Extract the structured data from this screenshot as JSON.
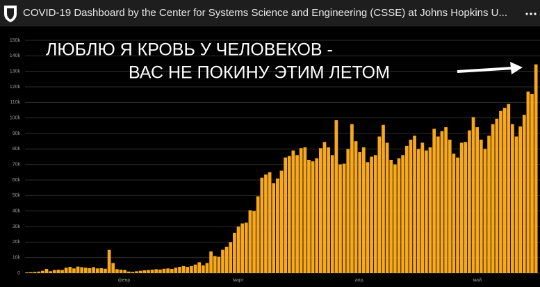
{
  "header": {
    "title": "COVID-19 Dashboard by the Center for Systems Science and Engineering (CSSE) at Johns Hopkins U..."
  },
  "chart_data": {
    "type": "bar",
    "annotations": [
      "ЛЮБЛЮ Я КРОВЬ У ЧЕЛОВЕКОВ  -",
      "ВАС НЕ ПОКИНУ ЭТИМ ЛЕТОМ"
    ],
    "color": "#f7a81b",
    "grid": true,
    "ylim": [
      0,
      150000
    ],
    "yticks": [
      {
        "value": 0,
        "label": "0"
      },
      {
        "value": 10000,
        "label": "10k"
      },
      {
        "value": 20000,
        "label": "20k"
      },
      {
        "value": 30000,
        "label": "30k"
      },
      {
        "value": 40000,
        "label": "40k"
      },
      {
        "value": 50000,
        "label": "50k"
      },
      {
        "value": 60000,
        "label": "60k"
      },
      {
        "value": 70000,
        "label": "70k"
      },
      {
        "value": 80000,
        "label": "80k"
      },
      {
        "value": 90000,
        "label": "90k"
      },
      {
        "value": 100000,
        "label": "100k"
      },
      {
        "value": 110000,
        "label": "110k"
      },
      {
        "value": 120000,
        "label": "120k"
      },
      {
        "value": 130000,
        "label": "130k"
      },
      {
        "value": 140000,
        "label": "140k"
      },
      {
        "value": 150000,
        "label": "150k"
      }
    ],
    "categories": [
      null,
      null,
      null,
      null,
      null,
      null,
      null,
      null,
      null,
      null,
      null,
      null,
      null,
      null,
      null,
      null,
      null,
      null,
      null,
      null,
      null,
      null,
      null,
      null,
      null,
      "февр.",
      null,
      null,
      null,
      null,
      null,
      null,
      null,
      null,
      null,
      null,
      null,
      null,
      null,
      null,
      null,
      null,
      null,
      null,
      null,
      null,
      null,
      null,
      null,
      null,
      null,
      null,
      null,
      null,
      "март",
      null,
      null,
      null,
      null,
      null,
      null,
      null,
      null,
      null,
      null,
      null,
      null,
      null,
      null,
      null,
      null,
      null,
      null,
      null,
      null,
      null,
      null,
      null,
      null,
      null,
      null,
      null,
      null,
      null,
      null,
      "апр.",
      null,
      null,
      null,
      null,
      null,
      null,
      null,
      null,
      null,
      null,
      null,
      null,
      null,
      null,
      null,
      null,
      null,
      null,
      null,
      null,
      null,
      null,
      null,
      null,
      null,
      null,
      null,
      null,
      null,
      "май",
      null,
      null,
      null,
      null,
      null,
      null,
      null,
      null,
      null,
      null,
      null,
      null,
      null,
      null,
      null
    ],
    "values": [
      500,
      600,
      800,
      1000,
      1500,
      2700,
      1200,
      2000,
      2200,
      2000,
      3500,
      4000,
      3000,
      4200,
      3800,
      3500,
      3200,
      3800,
      3000,
      3200,
      2800,
      15000,
      6500,
      2500,
      2200,
      2000,
      1000,
      800,
      1200,
      1500,
      1800,
      2000,
      2200,
      2500,
      2300,
      2800,
      3000,
      2700,
      3500,
      4000,
      4500,
      4000,
      4500,
      5500,
      7000,
      5000,
      6500,
      14000,
      11000,
      10500,
      15000,
      17000,
      20000,
      26000,
      30000,
      32000,
      32500,
      40500,
      40000,
      49500,
      61500,
      63500,
      65000,
      58000,
      61000,
      66000,
      74500,
      75500,
      79000,
      76000,
      80500,
      81000,
      73000,
      72000,
      74000,
      80500,
      84500,
      81000,
      76000,
      98500,
      70000,
      70500,
      80000,
      96000,
      85000,
      78000,
      81000,
      71500,
      75000,
      76000,
      88000,
      95500,
      84000,
      73000,
      70000,
      74000,
      76000,
      82000,
      86000,
      88500,
      80000,
      84000,
      79000,
      81000,
      93000,
      88000,
      91500,
      94000,
      86000,
      77000,
      74500,
      84000,
      84500,
      92000,
      100500,
      94000,
      86000,
      80000,
      88500,
      96000,
      99500,
      104500,
      106500,
      109000,
      96000,
      88000,
      94500,
      102000,
      117000,
      115500,
      134500
    ]
  }
}
